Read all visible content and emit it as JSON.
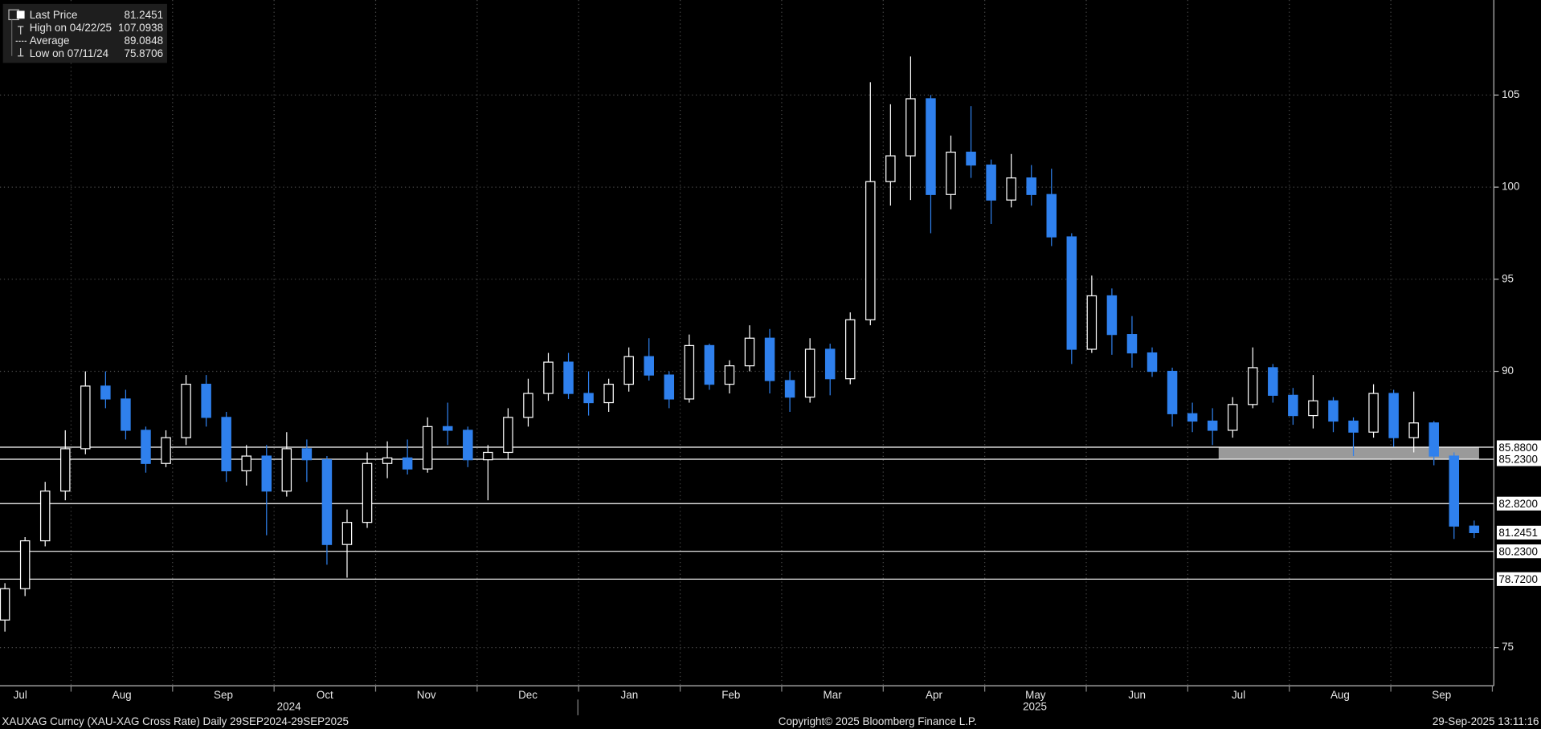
{
  "chart_data": {
    "type": "candlestick",
    "ylim": [
      72.93,
      110.16
    ],
    "yticks": [
      75,
      90,
      95,
      100,
      105
    ],
    "grid": true,
    "up_color": "#ffffff",
    "down_color": "#2f80ed",
    "categories": [
      "Jul",
      "Aug",
      "Sep",
      "Oct",
      "Nov",
      "Dec",
      "Jan",
      "Feb",
      "Mar",
      "Apr",
      "May",
      "Jun",
      "Jul",
      "Aug",
      "Sep"
    ],
    "years": [
      "2024",
      "2025"
    ],
    "ohlc": [
      [
        76.5,
        78.5,
        75.8706,
        78.2
      ],
      [
        78.2,
        81,
        77.8,
        80.8
      ],
      [
        80.8,
        84,
        80.5,
        83.5
      ],
      [
        83.5,
        86.8,
        83,
        85.8
      ],
      [
        85.8,
        90,
        85.5,
        89.2
      ],
      [
        89.2,
        90,
        88,
        88.5
      ],
      [
        88.5,
        89,
        86.3,
        86.8
      ],
      [
        86.8,
        87,
        84.5,
        85
      ],
      [
        85,
        86.8,
        84.8,
        86.4
      ],
      [
        86.4,
        89.8,
        86,
        89.3
      ],
      [
        89.3,
        89.8,
        87,
        87.5
      ],
      [
        87.5,
        87.8,
        84,
        84.6
      ],
      [
        84.6,
        86,
        83.8,
        85.4
      ],
      [
        85.4,
        86,
        81.1,
        83.5
      ],
      [
        83.5,
        86.7,
        83.2,
        85.8
      ],
      [
        85.8,
        86.3,
        84,
        85.2
      ],
      [
        85.2,
        85.4,
        79.5,
        80.6
      ],
      [
        80.6,
        82.5,
        78.8,
        81.8
      ],
      [
        81.8,
        85.6,
        81.5,
        85
      ],
      [
        85,
        86.2,
        84.2,
        85.3
      ],
      [
        85.3,
        86.3,
        84.4,
        84.7
      ],
      [
        84.7,
        87.5,
        84.5,
        87
      ],
      [
        87,
        88.3,
        86,
        86.8
      ],
      [
        86.8,
        87,
        84.8,
        85.2
      ],
      [
        85.2,
        86,
        83,
        85.6
      ],
      [
        85.6,
        88,
        85.2,
        87.5
      ],
      [
        87.5,
        89.6,
        87,
        88.8
      ],
      [
        88.8,
        91,
        88.4,
        90.5
      ],
      [
        90.5,
        91,
        88.5,
        88.8
      ],
      [
        88.8,
        90,
        87.6,
        88.3
      ],
      [
        88.3,
        89.6,
        87.8,
        89.3
      ],
      [
        89.3,
        91.3,
        88.9,
        90.8
      ],
      [
        90.8,
        91.8,
        89.5,
        89.8
      ],
      [
        89.8,
        90,
        88,
        88.5
      ],
      [
        88.5,
        92,
        88.3,
        91.4
      ],
      [
        91.4,
        91.5,
        89,
        89.3
      ],
      [
        89.3,
        90.6,
        88.8,
        90.3
      ],
      [
        90.3,
        92.5,
        90,
        91.8
      ],
      [
        91.8,
        92.3,
        88.8,
        89.5
      ],
      [
        89.5,
        90,
        87.8,
        88.6
      ],
      [
        88.6,
        91.8,
        88.3,
        91.2
      ],
      [
        91.2,
        91.5,
        88.7,
        89.6
      ],
      [
        89.6,
        93.2,
        89.3,
        92.8
      ],
      [
        92.8,
        105.7,
        92.5,
        100.3
      ],
      [
        100.3,
        104.5,
        99,
        101.7
      ],
      [
        101.7,
        107.0938,
        99.3,
        104.8
      ],
      [
        104.8,
        105,
        97.5,
        99.6
      ],
      [
        99.6,
        102.8,
        98.8,
        101.9
      ],
      [
        101.9,
        104.4,
        100.5,
        101.2
      ],
      [
        101.2,
        101.5,
        98,
        99.3
      ],
      [
        99.3,
        101.8,
        98.9,
        100.5
      ],
      [
        100.5,
        101.2,
        99,
        99.6
      ],
      [
        99.6,
        101,
        96.8,
        97.3
      ],
      [
        97.3,
        97.5,
        90.4,
        91.2
      ],
      [
        91.2,
        95.2,
        91,
        94.1
      ],
      [
        94.1,
        94.5,
        90.9,
        92
      ],
      [
        92,
        93,
        90.2,
        91
      ],
      [
        91,
        91.3,
        89.7,
        90
      ],
      [
        90,
        90.2,
        87,
        87.7
      ],
      [
        87.7,
        88.3,
        86.7,
        87.3
      ],
      [
        87.3,
        88,
        86,
        86.8
      ],
      [
        86.8,
        88.6,
        86.4,
        88.2
      ],
      [
        88.2,
        91.3,
        88,
        90.2
      ],
      [
        90.2,
        90.4,
        88.3,
        88.7
      ],
      [
        88.7,
        89.1,
        87.1,
        87.6
      ],
      [
        87.6,
        89.8,
        86.9,
        88.4
      ],
      [
        88.4,
        88.6,
        86.7,
        87.3
      ],
      [
        87.3,
        87.5,
        85.4,
        86.7
      ],
      [
        86.7,
        89.3,
        86.4,
        88.8
      ],
      [
        88.8,
        89,
        85.9,
        86.4
      ],
      [
        86.4,
        88.9,
        85.6,
        87.2
      ],
      [
        87.2,
        87.3,
        84.9,
        85.4
      ],
      [
        85.4,
        85.6,
        80.9,
        81.6
      ],
      [
        81.6,
        81.9,
        80.95,
        81.2451
      ]
    ],
    "levels": [
      {
        "value": 85.88,
        "label": "85.8800"
      },
      {
        "value": 85.23,
        "label": "85.2300"
      },
      {
        "value": 82.82,
        "label": "82.8200"
      },
      {
        "value": 80.23,
        "label": "80.2300"
      },
      {
        "value": 78.72,
        "label": "78.7200"
      }
    ],
    "legend": [
      {
        "name": "Last Price",
        "value": 81.2451
      },
      {
        "name": "High on 04/22/25",
        "value": 107.0938
      },
      {
        "name": "Average",
        "value": 89.0848
      },
      {
        "name": "Low on 07/11/24",
        "value": 75.8706
      }
    ],
    "footer": {
      "left": "XAUXAG Curncy (XAU-XAG Cross Rate)  Daily 29SEP2024-29SEP2025",
      "center": "Copyright© 2025 Bloomberg Finance L.P.",
      "right": "29-Sep-2025 13:11:16"
    }
  }
}
